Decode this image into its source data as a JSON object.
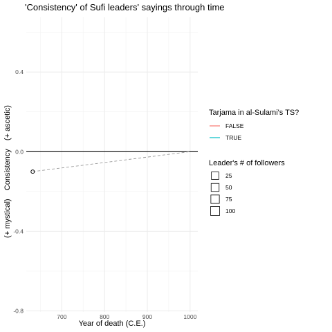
{
  "chart_data": {
    "type": "scatter",
    "title": "'Consistency' of Sufi leaders' sayings through time",
    "xlabel": "Year of death (C.E.)",
    "ylabel": "(+ mystical)    Consistency    (+ ascetic)",
    "xlim": [
      617,
      1018
    ],
    "ylim": [
      -0.805,
      0.675
    ],
    "x_ticks": [
      700,
      800,
      900,
      1000
    ],
    "x_tick_labels": [
      "700",
      "800",
      "900",
      "1000"
    ],
    "y_ticks": [
      -0.8,
      -0.4,
      0.0,
      0.4
    ],
    "y_tick_labels": [
      "-0.8",
      "-0.4",
      "0.0",
      "0.4"
    ],
    "grid": true,
    "reference_line": {
      "y": 0.0,
      "color": "#000000"
    },
    "points": [
      {
        "x": 632,
        "y": -0.1,
        "followers": 25
      }
    ],
    "trend_line": {
      "style": "dashed",
      "color": "#999999",
      "start": {
        "x": 632,
        "y": -0.1
      },
      "end": {
        "x": 1000,
        "y": 0.0
      }
    },
    "legend": {
      "position": "right",
      "color_title": "Tarjama in al-Sulami's TS?",
      "color_entries": [
        {
          "label": "FALSE",
          "color": "#f8766d"
        },
        {
          "label": "TRUE",
          "color": "#00bfc4"
        }
      ],
      "size_title": "Leader's # of followers",
      "size_entries": [
        {
          "label": "25",
          "value": 25
        },
        {
          "label": "50",
          "value": 50
        },
        {
          "label": "75",
          "value": 75
        },
        {
          "label": "100",
          "value": 100
        }
      ]
    }
  }
}
